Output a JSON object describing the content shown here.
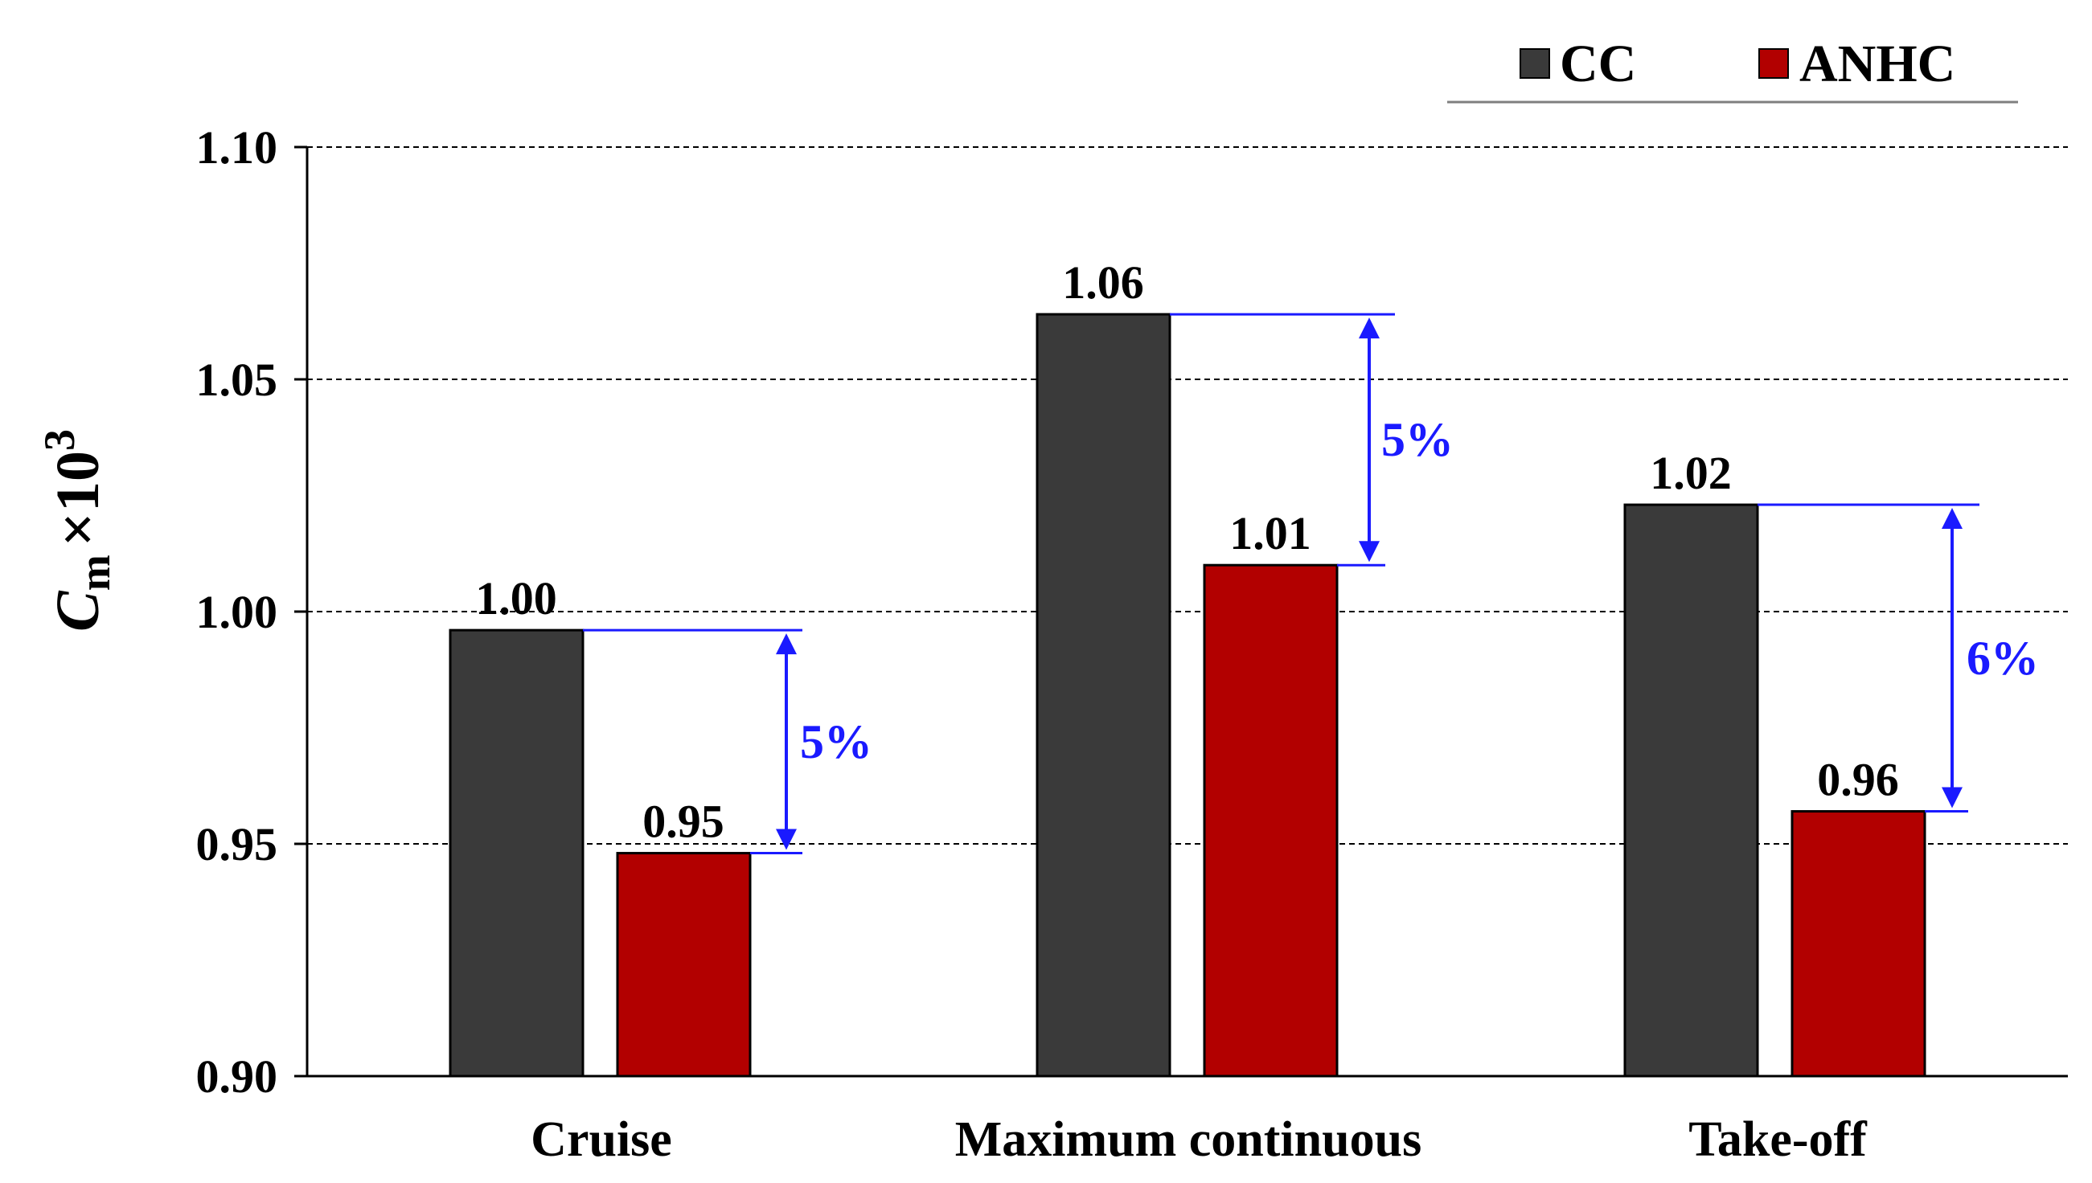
{
  "chart_data": {
    "type": "bar",
    "title": "",
    "xlabel": "",
    "ylabel": {
      "symbol": "C",
      "subscript": "m",
      "operator": "×10",
      "superscript": "3"
    },
    "ylim": [
      0.9,
      1.1
    ],
    "yticks": [
      0.9,
      0.95,
      1.0,
      1.05,
      1.1
    ],
    "ytick_labels": [
      "0.90",
      "0.95",
      "1.00",
      "1.05",
      "1.10"
    ],
    "grid": "horizontal dashed",
    "legend_position": "top-right",
    "categories": [
      "Cruise",
      "Maximum continuous",
      "Take-off"
    ],
    "series": [
      {
        "name": "CC",
        "color": "#3a3a3a",
        "values": [
          0.996,
          1.064,
          1.023
        ],
        "labels": [
          "1.00",
          "1.06",
          "1.02"
        ]
      },
      {
        "name": "ANHC",
        "color": "#b20000",
        "values": [
          0.948,
          1.01,
          0.957
        ],
        "labels": [
          "0.95",
          "1.01",
          "0.96"
        ]
      }
    ],
    "annotations": [
      {
        "category": "Cruise",
        "text": "5%"
      },
      {
        "category": "Maximum continuous",
        "text": "5%"
      },
      {
        "category": "Take-off",
        "text": "6%"
      }
    ],
    "annotation_color": "#1a1aff"
  }
}
